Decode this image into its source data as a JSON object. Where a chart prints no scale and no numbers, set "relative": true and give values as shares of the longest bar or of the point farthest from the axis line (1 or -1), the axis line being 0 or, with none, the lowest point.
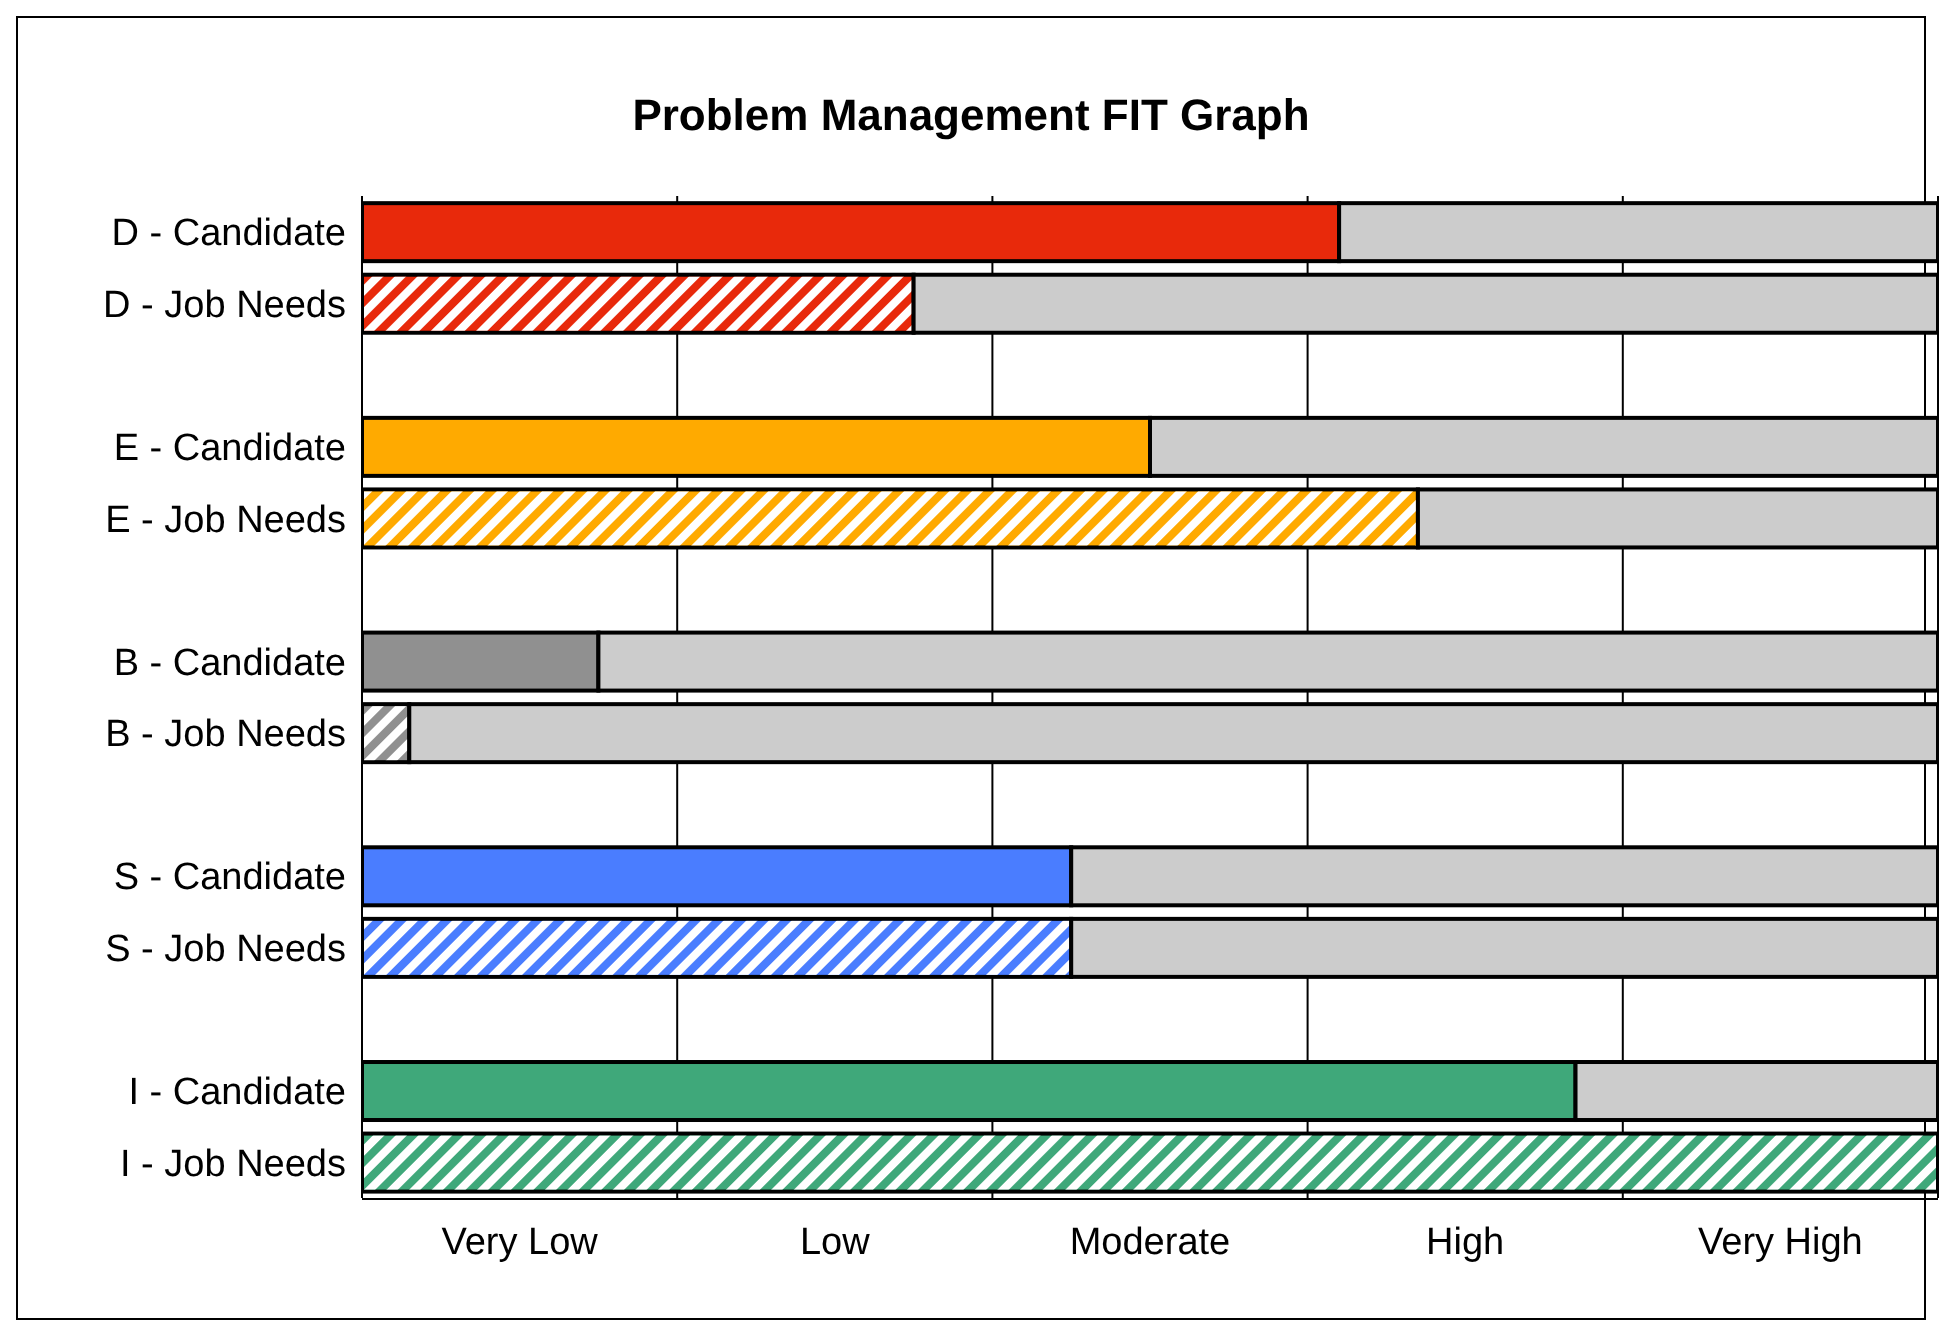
{
  "chart_data": {
    "type": "bar",
    "orientation": "horizontal",
    "stacked": true,
    "relative": true,
    "title": "Problem Management FIT Graph",
    "categories": [
      "D - Candidate",
      "D - Job Needs",
      null,
      "E - Candidate",
      "E - Job Needs",
      null,
      "B - Candidate",
      "B - Job Needs",
      null,
      "S - Candidate",
      "S - Job Needs",
      null,
      "I - Candidate",
      "I - Job Needs"
    ],
    "series": [
      {
        "colors": [
          "#e8290b",
          null,
          null,
          "#ffaa00",
          null,
          null,
          "#909090",
          null,
          null,
          "#4a7dff",
          null,
          null,
          "#3fa87a",
          null
        ],
        "values": [
          0.62,
          null,
          null,
          0.5,
          null,
          null,
          0.15,
          null,
          null,
          0.45,
          null,
          null,
          0.77,
          null
        ]
      },
      {
        "colors": [
          null,
          "#e8290b",
          null,
          null,
          "#ffaa00",
          null,
          null,
          "#909090",
          null,
          null,
          "#4a7dff",
          null,
          null,
          "#3fa87a"
        ],
        "values": [
          null,
          0.35,
          null,
          null,
          0.67,
          null,
          null,
          0.03,
          null,
          null,
          0.45,
          null,
          null,
          1.0
        ]
      },
      {
        "color": "#cccccc",
        "values": [
          0.38,
          0.65,
          null,
          0.5,
          0.33,
          null,
          0.85,
          0.97,
          null,
          0.55,
          0.55,
          null,
          0.23,
          null
        ]
      }
    ],
    "annotations": [
      "Very Low",
      "Low",
      "Moderate",
      "High",
      "Very High"
    ],
    "grid": "x"
  }
}
